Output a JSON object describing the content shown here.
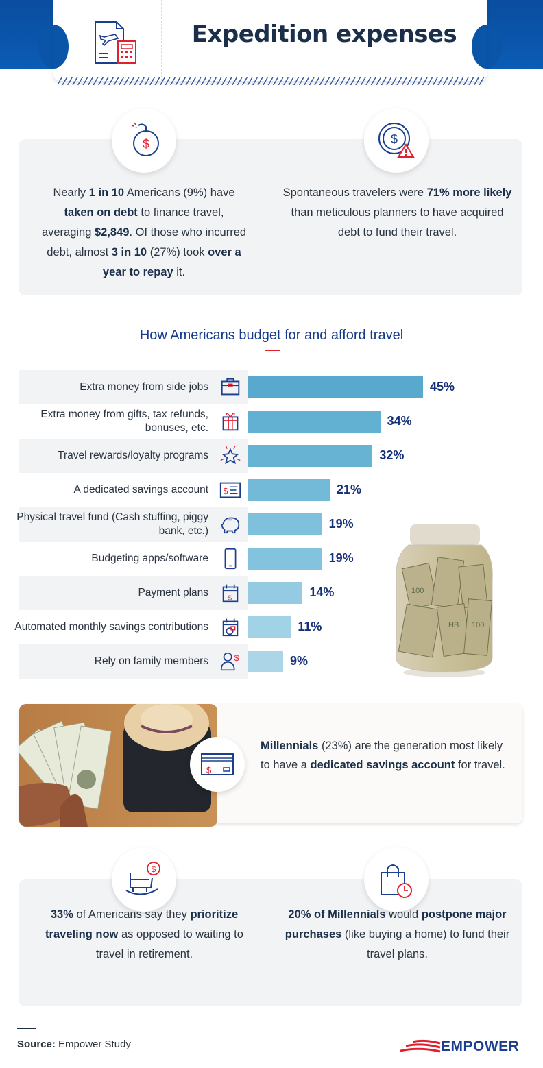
{
  "header": {
    "title": "Expedition expenses",
    "icon": "travel-document-calculator-icon"
  },
  "stats_top": [
    {
      "icon": "money-bomb-icon",
      "segments": [
        {
          "t": "Nearly "
        },
        {
          "t": "1 in 10",
          "b": 1
        },
        {
          "t": " Americans (9%) have "
        },
        {
          "t": "taken on debt",
          "b": 1
        },
        {
          "t": " to finance travel, averaging "
        },
        {
          "t": "$2,849",
          "b": 1
        },
        {
          "t": ". Of those who incurred debt, almost "
        },
        {
          "t": "3 in 10",
          "b": 1
        },
        {
          "t": " (27%) took "
        },
        {
          "t": "over a year to repay",
          "b": 1
        },
        {
          "t": " it."
        }
      ]
    },
    {
      "icon": "dollar-warning-icon",
      "segments": [
        {
          "t": "Spontaneous travelers were "
        },
        {
          "t": "71% more likely",
          "b": 1
        },
        {
          "t": " than meticulous planners to have acquired debt to fund their travel."
        }
      ]
    }
  ],
  "chart_data": {
    "type": "bar",
    "orientation": "horizontal",
    "title": "How Americans budget for and afford travel",
    "categories": [
      "Extra money from side jobs",
      "Extra money from gifts, tax refunds, bonuses, etc.",
      "Travel rewards/loyalty programs",
      "A dedicated savings account",
      "Physical travel fund (Cash stuffing, piggy bank, etc.)",
      "Budgeting apps/software",
      "Payment plans",
      "Automated monthly savings contributions",
      "Rely on family members"
    ],
    "values": [
      45,
      34,
      32,
      21,
      19,
      19,
      14,
      11,
      9
    ],
    "labels": [
      "45%",
      "34%",
      "32%",
      "21%",
      "19%",
      "19%",
      "14%",
      "11%",
      "9%"
    ],
    "icons": [
      "briefcase-icon",
      "gift-icon",
      "star-icon",
      "savings-account-icon",
      "piggy-bank-icon",
      "smartphone-icon",
      "calendar-dollar-icon",
      "calendar-chart-icon",
      "person-dollar-icon"
    ],
    "unit": "%",
    "grid": false,
    "colors": [
      "#58a9cd",
      "#62b0d2",
      "#66b3d4",
      "#72bad8",
      "#7fc0dc",
      "#84c3de",
      "#94cbe2",
      "#a2d2e6",
      "#acd6e8"
    ]
  },
  "millennials": {
    "icon": "credit-card-dollar-icon",
    "segments": [
      {
        "t": "Millennials",
        "b": 1
      },
      {
        "t": " (23%) are the generation most likely to have a "
      },
      {
        "t": "dedicated savings account",
        "b": 1
      },
      {
        "t": " for travel."
      }
    ]
  },
  "stats_bottom": [
    {
      "icon": "rocking-horse-dollar-icon",
      "segments": [
        {
          "t": "33%",
          "b": 1
        },
        {
          "t": " of Americans say they "
        },
        {
          "t": "prioritize traveling now",
          "b": 1
        },
        {
          "t": " as opposed to waiting to travel in retirement."
        }
      ]
    },
    {
      "icon": "shopping-bag-clock-icon",
      "segments": [
        {
          "t": "20% of Millennials",
          "b": 1
        },
        {
          "t": " would "
        },
        {
          "t": "postpone major purchases",
          "b": 1
        },
        {
          "t": " (like buying a home) to fund their travel plans."
        }
      ]
    }
  ],
  "footer": {
    "source_label": "Source:",
    "source_value": " Empower Study",
    "logo": "EMPOWER"
  },
  "colors": {
    "navy": "#1b2f4a",
    "accent_blue": "#153a8a",
    "red": "#e0202f",
    "band_blue": "#0b55a9"
  }
}
